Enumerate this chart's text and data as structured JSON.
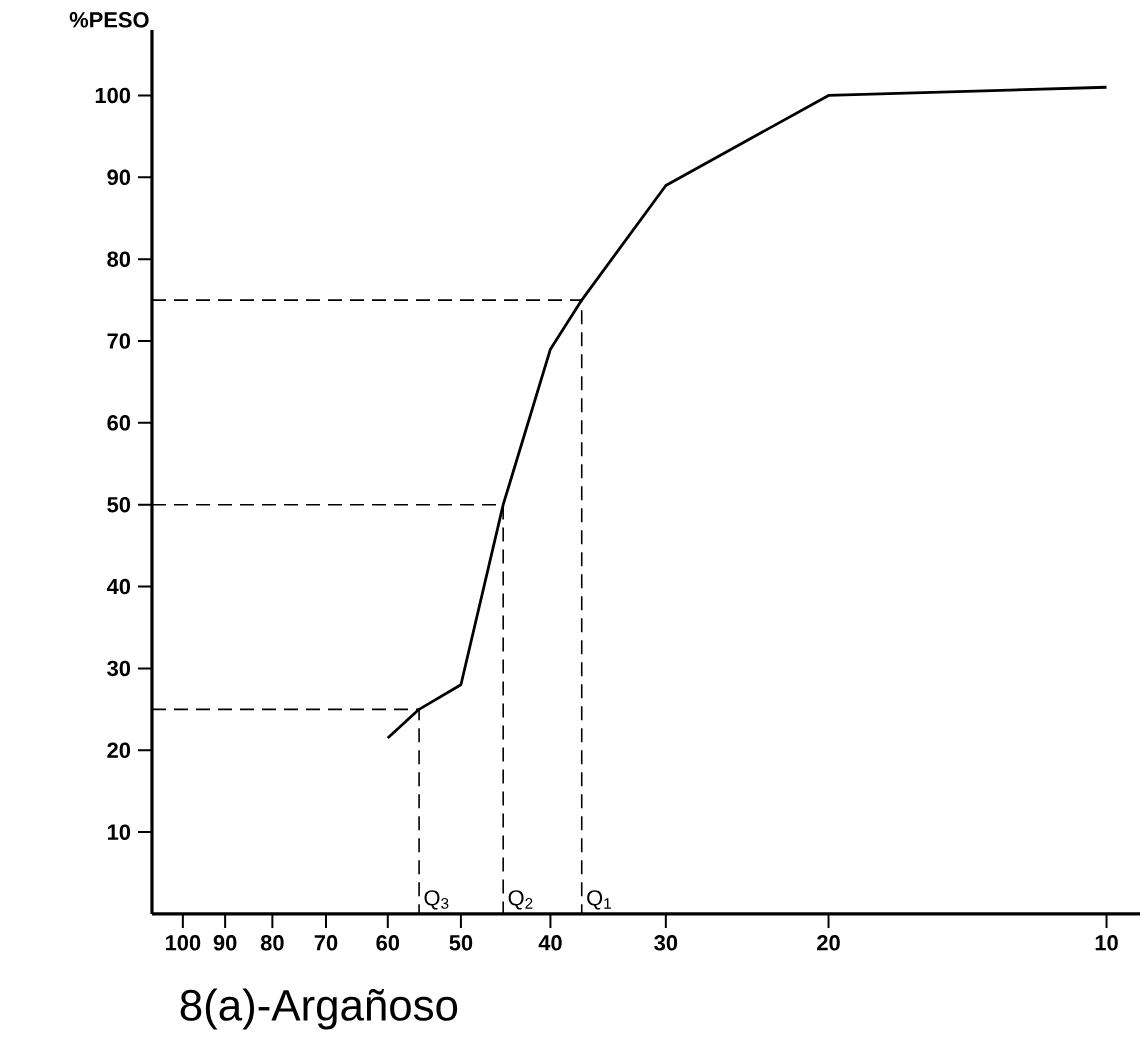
{
  "chart_data": {
    "type": "line",
    "title": "8(a)-Argañoso",
    "ylabel": "%PESO",
    "log": "x",
    "xlim": [
      108,
      9.2
    ],
    "ylim": [
      0,
      108
    ],
    "xticks": [
      100,
      90,
      80,
      70,
      60,
      50,
      40,
      30,
      20,
      10
    ],
    "yticks": [
      10,
      20,
      30,
      40,
      50,
      60,
      70,
      80,
      90,
      100
    ],
    "grid": false,
    "marker": "none",
    "series": [
      {
        "color": "#000000",
        "line_style": "solid",
        "x": [
          60,
          55.5,
          50,
          45,
          40,
          37,
          30,
          20,
          10
        ],
        "values": [
          21.5,
          25,
          28,
          50,
          69,
          75,
          89,
          100,
          101
        ]
      },
      {
        "color": "#000000",
        "line_style": "dashed",
        "x": [
          108,
          55.5,
          55.5
        ],
        "values": [
          25,
          25,
          0
        ]
      },
      {
        "color": "#000000",
        "line_style": "dashed",
        "x": [
          108,
          45,
          45
        ],
        "values": [
          50,
          50,
          0
        ]
      },
      {
        "color": "#000000",
        "line_style": "dashed",
        "x": [
          108,
          37,
          37
        ],
        "values": [
          75,
          75,
          0
        ]
      }
    ],
    "annotations": [
      {
        "text": "Q$_{3}$",
        "x": 55.5,
        "y": 0
      },
      {
        "text": "Q$_{2}$",
        "x": 45,
        "y": 0
      },
      {
        "text": "Q$_{1}$",
        "x": 37,
        "y": 0
      }
    ]
  }
}
